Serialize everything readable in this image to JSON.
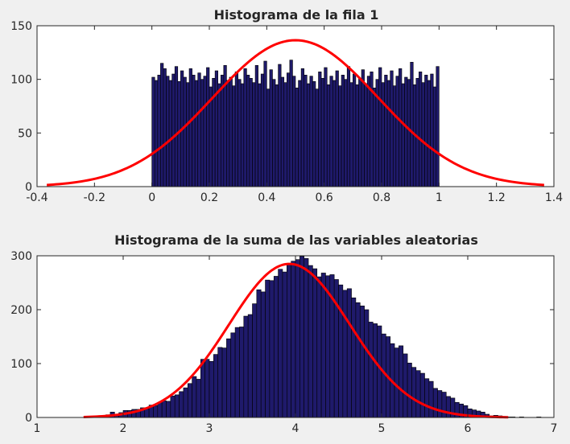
{
  "figure": {
    "background": "#f0f0f0"
  },
  "chart_data": [
    {
      "type": "bar",
      "title": "Histograma de la fila 1",
      "xlabel": "",
      "ylabel": "",
      "xlim": [
        -0.4,
        1.4
      ],
      "ylim": [
        0,
        150
      ],
      "xticks": [
        "-0.4",
        "-0.2",
        "0",
        "0.2",
        "0.4",
        "0.6",
        "0.8",
        "1",
        "1.2",
        "1.4"
      ],
      "yticks": [
        "0",
        "50",
        "100",
        "150"
      ],
      "grid": false,
      "bar_color": "#1f1a6b",
      "bar_edge_color": "#000000",
      "curve_color": "#ff0000",
      "bins": {
        "start": 0,
        "width": 0.01
      },
      "values": [
        102,
        99,
        104,
        115,
        110,
        103,
        99,
        105,
        112,
        98,
        108,
        102,
        97,
        110,
        104,
        99,
        106,
        100,
        103,
        111,
        93,
        101,
        108,
        96,
        104,
        113,
        99,
        102,
        94,
        107,
        100,
        96,
        110,
        104,
        101,
        97,
        113,
        96,
        105,
        117,
        91,
        109,
        100,
        95,
        114,
        102,
        97,
        106,
        118,
        103,
        92,
        99,
        110,
        104,
        96,
        103,
        98,
        91,
        107,
        101,
        111,
        95,
        103,
        99,
        108,
        94,
        104,
        100,
        112,
        97,
        105,
        95,
        101,
        109,
        96,
        103,
        107,
        92,
        100,
        111,
        97,
        104,
        99,
        108,
        94,
        103,
        110,
        96,
        102,
        100,
        116,
        95,
        101,
        107,
        97,
        104,
        99,
        105,
        93,
        112
      ],
      "curve": {
        "label": "",
        "mean": 0.5,
        "sd": 0.2887,
        "peak": 136.5,
        "xmin": -0.366,
        "xmax": 1.366
      }
    },
    {
      "type": "bar",
      "title": "Histograma de la suma de las variables aleatorias",
      "xlabel": "",
      "ylabel": "",
      "xlim": [
        1,
        7
      ],
      "ylim": [
        0,
        300
      ],
      "xticks": [
        "1",
        "2",
        "3",
        "4",
        "5",
        "6",
        "7"
      ],
      "yticks": [
        "0",
        "100",
        "200",
        "300"
      ],
      "grid": false,
      "bar_color": "#1f1a6b",
      "bar_edge_color": "#000000",
      "curve_color": "#ff0000",
      "bins": {
        "start": 1.55,
        "width": 0.05
      },
      "values": [
        1,
        2,
        1,
        3,
        3,
        5,
        10,
        6,
        9,
        13,
        13,
        15,
        15,
        18,
        16,
        23,
        22,
        28,
        31,
        30,
        40,
        42,
        48,
        55,
        63,
        76,
        71,
        108,
        108,
        104,
        117,
        130,
        129,
        146,
        157,
        167,
        168,
        188,
        191,
        211,
        237,
        233,
        255,
        254,
        262,
        275,
        270,
        285,
        290,
        293,
        299,
        295,
        282,
        276,
        261,
        268,
        263,
        265,
        256,
        246,
        236,
        239,
        222,
        213,
        207,
        200,
        177,
        174,
        170,
        155,
        150,
        137,
        129,
        133,
        118,
        101,
        93,
        87,
        82,
        72,
        67,
        54,
        50,
        47,
        39,
        36,
        28,
        25,
        22,
        16,
        14,
        12,
        10,
        6,
        3,
        4,
        3,
        2,
        1,
        1,
        0,
        1,
        0,
        0,
        0,
        1
      ],
      "curve": {
        "label": "",
        "mean": 3.93,
        "sd": 0.7,
        "peak": 285,
        "xmin": 1.54,
        "xmax": 6.47
      }
    }
  ]
}
